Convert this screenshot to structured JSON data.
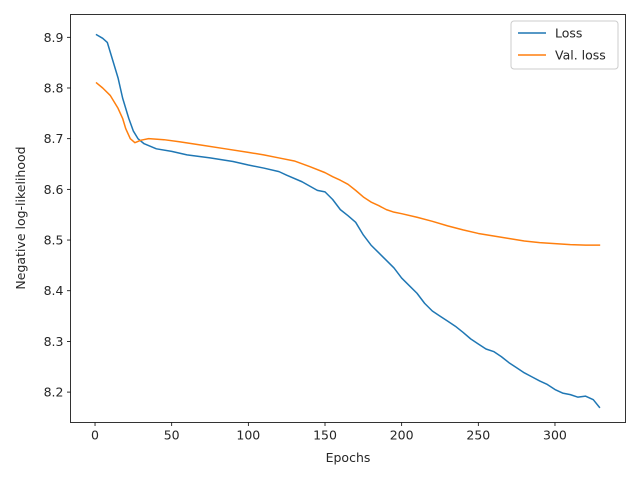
{
  "chart_data": {
    "type": "line",
    "xlabel": "Epochs",
    "ylabel": "Negative log-likelihood",
    "xlim": [
      -16,
      346
    ],
    "ylim": [
      8.14,
      8.945
    ],
    "x_ticks": [
      0,
      50,
      100,
      150,
      200,
      250,
      300
    ],
    "y_ticks": [
      8.2,
      8.3,
      8.4,
      8.5,
      8.6,
      8.7,
      8.8,
      8.9
    ],
    "grid": false,
    "legend_position": "top-right",
    "series": [
      {
        "name": "Loss",
        "color": "#1f77b4",
        "points": [
          [
            1,
            8.905
          ],
          [
            5,
            8.898
          ],
          [
            8,
            8.89
          ],
          [
            12,
            8.85
          ],
          [
            15,
            8.82
          ],
          [
            18,
            8.78
          ],
          [
            22,
            8.74
          ],
          [
            25,
            8.715
          ],
          [
            28,
            8.7
          ],
          [
            32,
            8.69
          ],
          [
            40,
            8.68
          ],
          [
            50,
            8.675
          ],
          [
            60,
            8.668
          ],
          [
            75,
            8.662
          ],
          [
            90,
            8.655
          ],
          [
            100,
            8.648
          ],
          [
            110,
            8.642
          ],
          [
            120,
            8.635
          ],
          [
            125,
            8.628
          ],
          [
            135,
            8.615
          ],
          [
            145,
            8.598
          ],
          [
            150,
            8.595
          ],
          [
            155,
            8.58
          ],
          [
            160,
            8.56
          ],
          [
            165,
            8.548
          ],
          [
            170,
            8.535
          ],
          [
            175,
            8.51
          ],
          [
            180,
            8.49
          ],
          [
            185,
            8.475
          ],
          [
            190,
            8.46
          ],
          [
            195,
            8.445
          ],
          [
            200,
            8.425
          ],
          [
            205,
            8.41
          ],
          [
            210,
            8.395
          ],
          [
            215,
            8.375
          ],
          [
            220,
            8.36
          ],
          [
            225,
            8.35
          ],
          [
            230,
            8.34
          ],
          [
            235,
            8.33
          ],
          [
            240,
            8.318
          ],
          [
            245,
            8.305
          ],
          [
            250,
            8.295
          ],
          [
            255,
            8.285
          ],
          [
            260,
            8.28
          ],
          [
            265,
            8.27
          ],
          [
            270,
            8.258
          ],
          [
            275,
            8.248
          ],
          [
            280,
            8.238
          ],
          [
            285,
            8.23
          ],
          [
            290,
            8.222
          ],
          [
            295,
            8.215
          ],
          [
            300,
            8.205
          ],
          [
            305,
            8.198
          ],
          [
            310,
            8.195
          ],
          [
            315,
            8.19
          ],
          [
            320,
            8.192
          ],
          [
            325,
            8.185
          ],
          [
            329,
            8.17
          ]
        ]
      },
      {
        "name": "Val. loss",
        "color": "#ff7f0e",
        "points": [
          [
            1,
            8.81
          ],
          [
            5,
            8.8
          ],
          [
            10,
            8.785
          ],
          [
            15,
            8.76
          ],
          [
            18,
            8.74
          ],
          [
            20,
            8.72
          ],
          [
            23,
            8.7
          ],
          [
            26,
            8.692
          ],
          [
            30,
            8.697
          ],
          [
            35,
            8.7
          ],
          [
            45,
            8.698
          ],
          [
            55,
            8.694
          ],
          [
            70,
            8.687
          ],
          [
            85,
            8.68
          ],
          [
            100,
            8.673
          ],
          [
            110,
            8.668
          ],
          [
            120,
            8.662
          ],
          [
            130,
            8.656
          ],
          [
            140,
            8.645
          ],
          [
            150,
            8.633
          ],
          [
            155,
            8.625
          ],
          [
            160,
            8.618
          ],
          [
            165,
            8.61
          ],
          [
            170,
            8.598
          ],
          [
            175,
            8.585
          ],
          [
            180,
            8.575
          ],
          [
            185,
            8.568
          ],
          [
            190,
            8.56
          ],
          [
            195,
            8.555
          ],
          [
            200,
            8.552
          ],
          [
            210,
            8.545
          ],
          [
            220,
            8.537
          ],
          [
            230,
            8.528
          ],
          [
            240,
            8.52
          ],
          [
            250,
            8.513
          ],
          [
            260,
            8.508
          ],
          [
            270,
            8.503
          ],
          [
            280,
            8.498
          ],
          [
            290,
            8.495
          ],
          [
            300,
            8.493
          ],
          [
            310,
            8.491
          ],
          [
            320,
            8.49
          ],
          [
            329,
            8.49
          ]
        ]
      }
    ]
  }
}
